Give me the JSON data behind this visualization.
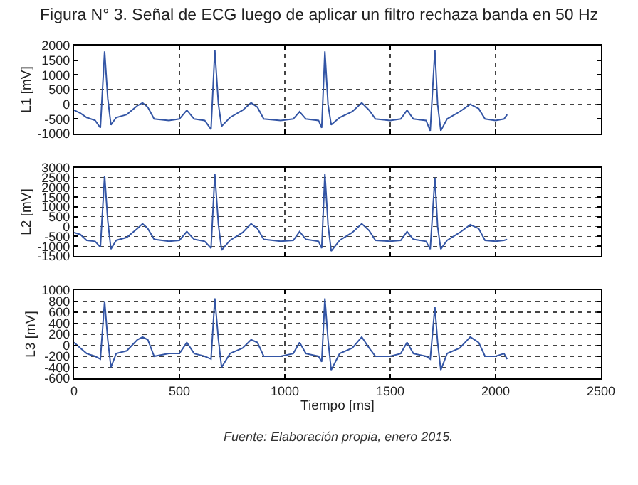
{
  "chart_data": [
    {
      "type": "line",
      "title": "Figura N° 3. Señal de ECG luego de aplicar un filtro rechaza banda en 50 Hz",
      "ylabel": "L1 [mV]",
      "color": "#3355a5",
      "line_style": "solid",
      "marker": "none",
      "grid": true,
      "tick_labels": "y",
      "x": [
        0,
        30,
        60,
        100,
        125,
        145,
        160,
        175,
        200,
        250,
        300,
        325,
        350,
        380,
        450,
        500,
        535,
        570,
        620,
        650,
        668,
        685,
        700,
        740,
        800,
        840,
        870,
        900,
        980,
        1040,
        1070,
        1100,
        1160,
        1175,
        1190,
        1205,
        1220,
        1260,
        1320,
        1365,
        1400,
        1430,
        1500,
        1550,
        1580,
        1610,
        1670,
        1690,
        1712,
        1725,
        1740,
        1770,
        1830,
        1880,
        1920,
        1950,
        2000,
        2040,
        2055
      ],
      "values": [
        -200,
        -300,
        -450,
        -550,
        -800,
        1800,
        200,
        -700,
        -450,
        -350,
        -50,
        50,
        -100,
        -500,
        -550,
        -500,
        -200,
        -500,
        -550,
        -850,
        1850,
        0,
        -750,
        -450,
        -200,
        50,
        -100,
        -500,
        -550,
        -500,
        -250,
        -500,
        -550,
        -800,
        1800,
        0,
        -700,
        -450,
        -250,
        50,
        -200,
        -500,
        -550,
        -500,
        -200,
        -500,
        -550,
        -900,
        1850,
        0,
        -900,
        -500,
        -250,
        0,
        -150,
        -500,
        -550,
        -500,
        -350
      ],
      "xlim": [
        0,
        2500
      ],
      "xticks": [
        0,
        500,
        1000,
        1500,
        2000,
        2500
      ],
      "ylim": [
        -1000,
        2000
      ],
      "yticks": [
        -1000,
        -500,
        0,
        500,
        1000,
        1500,
        2000
      ]
    },
    {
      "type": "line",
      "ylabel": "L2 [mV]",
      "color": "#3355a5",
      "line_style": "solid",
      "marker": "none",
      "grid": true,
      "tick_labels": "y",
      "x": [
        0,
        30,
        60,
        100,
        125,
        145,
        160,
        175,
        200,
        250,
        300,
        325,
        350,
        380,
        450,
        500,
        535,
        570,
        620,
        650,
        668,
        685,
        700,
        740,
        800,
        840,
        870,
        900,
        980,
        1040,
        1070,
        1100,
        1160,
        1175,
        1190,
        1205,
        1220,
        1260,
        1320,
        1365,
        1400,
        1430,
        1500,
        1550,
        1580,
        1610,
        1670,
        1690,
        1712,
        1725,
        1740,
        1770,
        1830,
        1880,
        1920,
        1950,
        2000,
        2040,
        2055
      ],
      "values": [
        -300,
        -400,
        -700,
        -750,
        -1050,
        2600,
        300,
        -1150,
        -700,
        -550,
        -100,
        150,
        -100,
        -650,
        -750,
        -700,
        -250,
        -650,
        -750,
        -1100,
        2700,
        100,
        -1200,
        -700,
        -300,
        150,
        -100,
        -650,
        -750,
        -700,
        -250,
        -650,
        -750,
        -1100,
        2700,
        100,
        -1250,
        -700,
        -300,
        150,
        -200,
        -700,
        -750,
        -700,
        -250,
        -650,
        -750,
        -1150,
        2500,
        0,
        -1150,
        -700,
        -300,
        100,
        -100,
        -700,
        -750,
        -700,
        -650
      ],
      "xlim": [
        0,
        2500
      ],
      "xticks": [
        0,
        500,
        1000,
        1500,
        2000,
        2500
      ],
      "ylim": [
        -1500,
        3000
      ],
      "yticks": [
        -1500,
        -1000,
        -500,
        0,
        500,
        1000,
        1500,
        2000,
        2500,
        3000
      ]
    },
    {
      "type": "line",
      "ylabel": "L3 [mV]",
      "xlabel": "Tiempo [ms]",
      "annotations": [
        "Fuente: Elaboración propia, enero 2015."
      ],
      "color": "#3355a5",
      "line_style": "solid",
      "marker": "none",
      "grid": true,
      "x": [
        0,
        30,
        60,
        100,
        125,
        145,
        160,
        175,
        200,
        250,
        300,
        325,
        350,
        380,
        450,
        500,
        535,
        570,
        620,
        650,
        668,
        685,
        700,
        740,
        800,
        840,
        870,
        900,
        980,
        1040,
        1070,
        1100,
        1160,
        1175,
        1190,
        1205,
        1220,
        1260,
        1320,
        1365,
        1400,
        1430,
        1500,
        1550,
        1580,
        1610,
        1670,
        1690,
        1712,
        1725,
        1740,
        1770,
        1830,
        1880,
        1920,
        1950,
        2000,
        2040,
        2055
      ],
      "values": [
        50,
        -50,
        -150,
        -200,
        -250,
        800,
        100,
        -400,
        -150,
        -100,
        100,
        150,
        100,
        -200,
        -150,
        -150,
        50,
        -150,
        -200,
        -250,
        850,
        100,
        -400,
        -150,
        -50,
        100,
        50,
        -200,
        -200,
        -150,
        50,
        -150,
        -200,
        -300,
        850,
        100,
        -450,
        -150,
        -50,
        150,
        -50,
        -200,
        -200,
        -150,
        50,
        -150,
        -200,
        -250,
        700,
        50,
        -450,
        -150,
        -50,
        150,
        50,
        -200,
        -200,
        -150,
        -250
      ],
      "xlim": [
        0,
        2500
      ],
      "xticks": [
        0,
        500,
        1000,
        1500,
        2000,
        2500
      ],
      "ylim": [
        -600,
        1000
      ],
      "yticks": [
        -600,
        -400,
        -200,
        0,
        200,
        400,
        600,
        800,
        1000
      ]
    }
  ]
}
